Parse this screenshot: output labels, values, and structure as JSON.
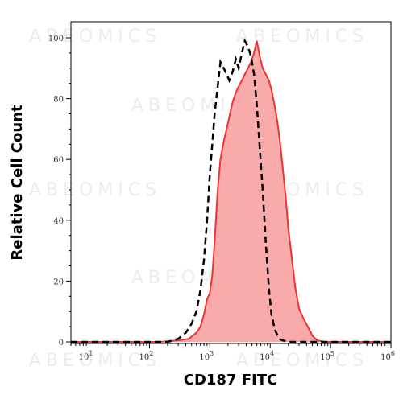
{
  "chart_data": {
    "type": "area",
    "xlabel": "CD187 FITC",
    "ylabel": "Relative Cell Count",
    "x_scale": "log",
    "xlim": [
      5,
      1000000
    ],
    "ylim": [
      0,
      100
    ],
    "y_ticks": [
      0,
      20,
      40,
      60,
      80,
      100
    ],
    "x_ticks": [
      {
        "base": "10",
        "exp": "1",
        "value": 10
      },
      {
        "base": "10",
        "exp": "2",
        "value": 100
      },
      {
        "base": "10",
        "exp": "3",
        "value": 1000
      },
      {
        "base": "10",
        "exp": "4",
        "value": 10000
      },
      {
        "base": "10",
        "exp": "5",
        "value": 100000
      },
      {
        "base": "10",
        "exp": "6",
        "value": 1000000
      }
    ],
    "grid": false,
    "watermark": "ABEOMICS",
    "series": [
      {
        "style": "red filled histogram",
        "color": "#ee3333",
        "fill": "#f9aaaa",
        "x": [
          5,
          150,
          300,
          450,
          600,
          700,
          800,
          900,
          1000,
          1100,
          1200,
          1350,
          1500,
          1700,
          1900,
          2100,
          2400,
          2700,
          3000,
          3400,
          3800,
          4300,
          4800,
          5400,
          6000,
          6700,
          7500,
          8500,
          9500,
          10500,
          11500,
          13000,
          14500,
          16000,
          18000,
          20000,
          23000,
          26000,
          30000,
          35000,
          42000,
          50000,
          60000,
          80000,
          1000000
        ],
        "y": [
          0,
          0,
          0.5,
          1,
          3,
          5,
          9,
          14,
          16,
          22,
          33,
          50,
          60,
          66,
          70,
          74,
          79,
          82,
          84,
          86,
          88,
          90,
          92,
          95,
          99,
          94,
          90,
          88,
          86,
          83,
          79,
          73,
          66,
          58,
          48,
          37,
          27,
          18,
          11,
          8,
          5,
          2,
          0.5,
          0,
          0
        ]
      },
      {
        "style": "black dashed histogram",
        "color": "#000000",
        "x": [
          5,
          200,
          300,
          400,
          500,
          600,
          700,
          800,
          900,
          1000,
          1100,
          1200,
          1350,
          1500,
          1700,
          1900,
          2100,
          2400,
          2700,
          3000,
          3400,
          3800,
          4300,
          4800,
          5400,
          6000,
          6700,
          7500,
          8500,
          9500,
          10500,
          12000,
          14000,
          16000,
          20000,
          1000000
        ],
        "y": [
          0,
          0,
          1,
          3,
          6,
          10,
          17,
          27,
          40,
          55,
          65,
          75,
          84,
          92,
          90,
          88,
          86,
          89,
          93,
          90,
          95,
          99,
          97,
          94,
          88,
          78,
          64,
          50,
          32,
          18,
          9,
          4,
          1,
          0.5,
          0,
          0
        ]
      }
    ]
  }
}
